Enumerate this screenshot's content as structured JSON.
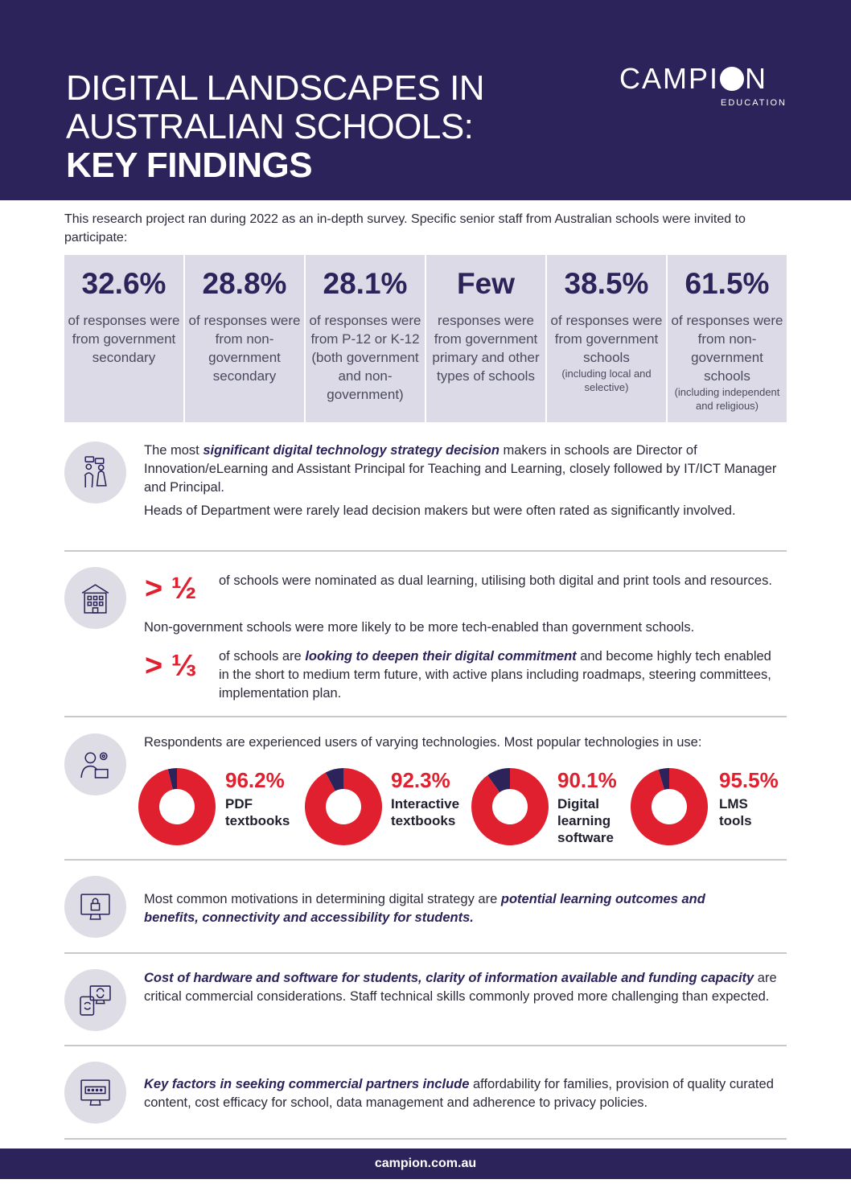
{
  "header": {
    "title_line1": "DIGITAL LANDSCAPES IN",
    "title_line2": "AUSTRALIAN SCHOOLS:",
    "title_line3": "KEY FINDINGS",
    "logo_left": "CAMPI",
    "logo_right": "N",
    "logo_sub": "EDUCATION"
  },
  "intro": "This research project ran during 2022 as an in-depth survey. Specific senior staff from Australian schools were invited to participate:",
  "stats": [
    {
      "value": "32.6%",
      "desc": "of responses were from government secondary",
      "note": ""
    },
    {
      "value": "28.8%",
      "desc": "of responses were from non-government secondary",
      "note": ""
    },
    {
      "value": "28.1%",
      "desc": "of responses were from P-12 or K-12 (both government and non-government)",
      "note": ""
    },
    {
      "value": "Few",
      "desc": "responses were from government primary and other types of schools",
      "note": ""
    },
    {
      "value": "38.5%",
      "desc": "of responses were from government schools",
      "note": "(including local and selective)"
    },
    {
      "value": "61.5%",
      "desc": "of responses were from non-government schools",
      "note": "(including independent and religious)"
    }
  ],
  "section1": {
    "icon": "decision-makers-icon",
    "p1_a": "The most ",
    "p1_emph": "significant digital technology strategy decision",
    "p1_b": " makers in schools are Director of Innovation/eLearning and Assistant Principal for Teaching and Learning, closely followed by IT/ICT Manager and Principal.",
    "p2": "Heads of Department were rarely lead decision makers but were often rated as significantly involved."
  },
  "section2": {
    "icon": "school-building-icon",
    "frac1": "> ½",
    "frac1_text": "of schools were nominated as dual learning, utilising both digital and print tools and resources.",
    "middle": "Non-government schools were more likely to be more tech-enabled than government schools.",
    "frac2": "> ⅓",
    "frac2_a": "of schools are ",
    "frac2_emph": "looking to deepen their digital commitment",
    "frac2_b": " and become highly tech enabled in the short to medium term future, with active plans including roadmaps, steering committees, implementation plan."
  },
  "section3": {
    "icon": "tech-user-icon",
    "intro": "Respondents are experienced users of varying technologies. Most popular technologies in use:"
  },
  "chart_data": {
    "type": "pie",
    "categories": [
      "PDF textbooks",
      "Interactive textbooks",
      "Digital learning software",
      "LMS tools"
    ],
    "value_labels": [
      "96.2%",
      "92.3%",
      "90.1%",
      "95.5%"
    ],
    "values": [
      96.2,
      92.3,
      90.1,
      95.5
    ],
    "colors": {
      "used": "#e0202e",
      "remainder": "#2b2359"
    }
  },
  "section4": {
    "icon": "secure-monitor-icon",
    "a": "Most common motivations in determining digital strategy are ",
    "emph": "potential learning outcomes and benefits, connectivity and accessibility for students."
  },
  "section5": {
    "icon": "sync-devices-icon",
    "emph": "Cost of hardware and software for students, clarity of information available and funding capacity",
    "b": " are critical commercial considerations. Staff technical skills commonly proved more challenging than expected."
  },
  "section6": {
    "icon": "password-monitor-icon",
    "emph": "Key factors in seeking commercial partners include",
    "b": " affordability for families, provision of quality curated content, cost efficacy for school, data management and adherence to privacy policies."
  },
  "footer": {
    "url": "campion.com.au"
  }
}
